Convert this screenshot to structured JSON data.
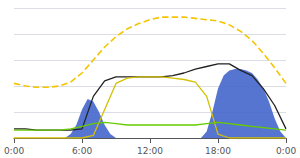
{
  "chart_data": {
    "type": "line",
    "series": [
      {
        "type": "area",
        "color": "#4466cc",
        "x": [
          4.5,
          5.0,
          5.5,
          6.0,
          6.5,
          7.0,
          7.5,
          8.0,
          8.5,
          9.0,
          9.5
        ],
        "values": [
          0.0,
          0.03,
          0.1,
          0.22,
          0.3,
          0.28,
          0.2,
          0.1,
          0.03,
          0.0,
          0.0
        ]
      },
      {
        "type": "area",
        "color": "#4466cc",
        "x": [
          16.5,
          17.0,
          17.5,
          18.0,
          18.5,
          19.0,
          19.5,
          20.0,
          20.5,
          21.0,
          21.5,
          22.0,
          22.5,
          23.0,
          23.5,
          24.0
        ],
        "values": [
          0.0,
          0.05,
          0.2,
          0.38,
          0.48,
          0.52,
          0.53,
          0.53,
          0.52,
          0.5,
          0.45,
          0.38,
          0.28,
          0.15,
          0.05,
          0.0
        ]
      },
      {
        "type": "line",
        "color": "#222222",
        "line_style": "solid",
        "x": [
          0,
          1,
          2,
          3,
          4,
          5,
          6,
          7,
          8,
          9,
          10,
          11,
          12,
          13,
          14,
          15,
          16,
          17,
          18,
          19,
          20,
          21,
          22,
          23,
          24
        ],
        "values": [
          0.07,
          0.07,
          0.06,
          0.06,
          0.06,
          0.06,
          0.07,
          0.32,
          0.44,
          0.47,
          0.47,
          0.47,
          0.47,
          0.47,
          0.48,
          0.5,
          0.53,
          0.55,
          0.57,
          0.57,
          0.52,
          0.48,
          0.38,
          0.25,
          0.07
        ]
      },
      {
        "type": "line",
        "color": "#f5c400",
        "line_style": "dashed",
        "x": [
          0,
          1,
          2,
          3,
          4,
          5,
          6,
          7,
          8,
          9,
          10,
          11,
          12,
          13,
          14,
          15,
          16,
          17,
          18,
          19,
          20,
          21,
          22,
          23,
          24
        ],
        "values": [
          0.42,
          0.4,
          0.39,
          0.39,
          0.4,
          0.43,
          0.5,
          0.6,
          0.7,
          0.78,
          0.84,
          0.88,
          0.91,
          0.93,
          0.93,
          0.93,
          0.92,
          0.91,
          0.9,
          0.87,
          0.82,
          0.75,
          0.65,
          0.54,
          0.42
        ]
      },
      {
        "type": "line",
        "color": "#d4c000",
        "line_style": "solid",
        "x": [
          0,
          1,
          2,
          3,
          4,
          5,
          6,
          7,
          8,
          9,
          10,
          11,
          12,
          13,
          14,
          15,
          16,
          17,
          18,
          19,
          20,
          21,
          22,
          23,
          24
        ],
        "values": [
          0.0,
          0.0,
          0.0,
          0.0,
          0.0,
          0.0,
          0.0,
          0.02,
          0.22,
          0.42,
          0.46,
          0.47,
          0.47,
          0.47,
          0.46,
          0.45,
          0.43,
          0.32,
          0.03,
          0.0,
          0.0,
          0.0,
          0.0,
          0.0,
          0.0
        ]
      },
      {
        "type": "line",
        "color": "#66cc00",
        "line_style": "solid",
        "x": [
          0,
          1,
          2,
          3,
          4,
          5,
          6,
          7,
          8,
          9,
          10,
          11,
          12,
          13,
          14,
          15,
          16,
          17,
          18,
          19,
          20,
          21,
          22,
          23,
          24
        ],
        "values": [
          0.06,
          0.06,
          0.06,
          0.06,
          0.06,
          0.07,
          0.09,
          0.11,
          0.12,
          0.11,
          0.1,
          0.1,
          0.1,
          0.1,
          0.1,
          0.1,
          0.1,
          0.11,
          0.12,
          0.11,
          0.1,
          0.09,
          0.08,
          0.07,
          0.06
        ]
      }
    ],
    "xlim": [
      0,
      24
    ],
    "xticks": [
      {
        "value": 0,
        "label": "0:00"
      },
      {
        "value": 6,
        "label": "6:00"
      },
      {
        "value": 12,
        "label": "12:00"
      },
      {
        "value": 18,
        "label": "18:00"
      },
      {
        "value": 24,
        "label": "0:00"
      }
    ],
    "ylim": [
      0,
      1.0
    ],
    "yticks": [
      0,
      0.2,
      0.4,
      0.6,
      0.8,
      1.0
    ],
    "grid": true,
    "tick_labels": "x"
  }
}
